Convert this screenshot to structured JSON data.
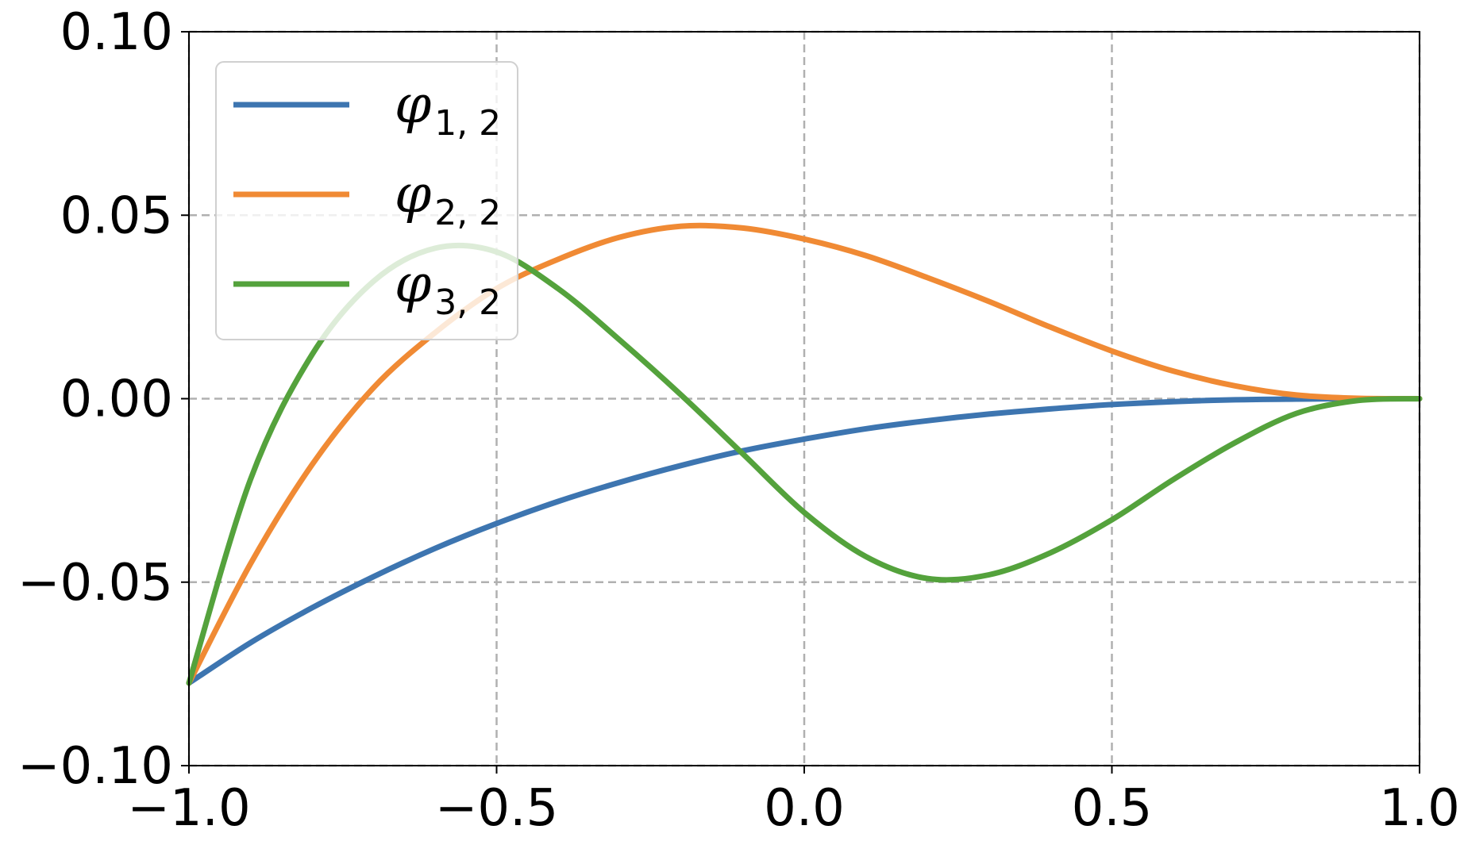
{
  "chart_data": {
    "type": "line",
    "title": "",
    "xlabel": "",
    "ylabel": "",
    "xlim": [
      -1.0,
      1.0
    ],
    "ylim": [
      -0.1,
      0.1
    ],
    "grid": true,
    "legend_position": "top-left",
    "x_ticks": [
      -1.0,
      -0.5,
      0.0,
      0.5,
      1.0
    ],
    "x_tick_labels": [
      "−1.0",
      "−0.5",
      "0.0",
      "0.5",
      "1.0"
    ],
    "y_ticks": [
      -0.1,
      -0.05,
      0.0,
      0.05,
      0.1
    ],
    "y_tick_labels": [
      "−0.10",
      "−0.05",
      "0.00",
      "0.05",
      "0.10"
    ],
    "x": [
      -1.0,
      -0.9,
      -0.8,
      -0.7,
      -0.6,
      -0.5,
      -0.4,
      -0.3,
      -0.2,
      -0.1,
      0.0,
      0.1,
      0.2,
      0.3,
      0.4,
      0.5,
      0.6,
      0.7,
      0.8,
      0.9,
      1.0
    ],
    "series": [
      {
        "name": "φ",
        "subscript": "1, 2",
        "color": "#3d75b0",
        "values": [
          -0.0775,
          -0.0665,
          -0.057,
          -0.0485,
          -0.0408,
          -0.034,
          -0.028,
          -0.0228,
          -0.0182,
          -0.0142,
          -0.011,
          -0.0082,
          -0.006,
          -0.0042,
          -0.0028,
          -0.0016,
          -0.0008,
          -0.0003,
          -0.0001,
          0.0,
          0.0
        ]
      },
      {
        "name": "φ",
        "subscript": "2, 2",
        "color": "#f08a34",
        "values": [
          -0.0775,
          -0.045,
          -0.018,
          0.003,
          0.018,
          0.03,
          0.038,
          0.044,
          0.047,
          0.0465,
          0.0435,
          0.039,
          0.033,
          0.0265,
          0.0195,
          0.013,
          0.0075,
          0.0035,
          0.001,
          0.0001,
          0.0
        ]
      },
      {
        "name": "φ",
        "subscript": "3, 2",
        "color": "#54a23c",
        "values": [
          -0.0775,
          -0.022,
          0.012,
          0.032,
          0.041,
          0.04,
          0.03,
          0.016,
          0.001,
          -0.015,
          -0.031,
          -0.043,
          -0.049,
          -0.048,
          -0.042,
          -0.033,
          -0.022,
          -0.012,
          -0.004,
          -0.0005,
          0.0
        ]
      }
    ]
  }
}
